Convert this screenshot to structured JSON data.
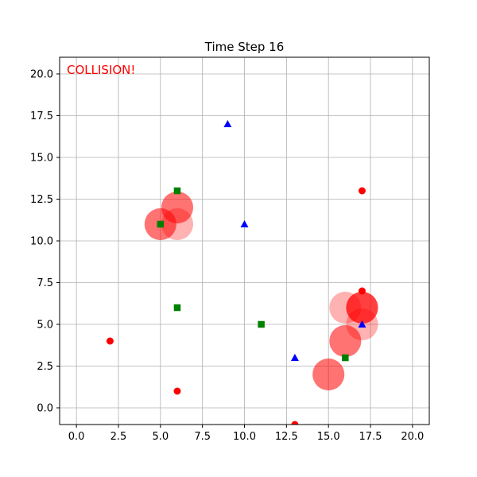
{
  "chart_data": {
    "type": "scatter",
    "title": "Time Step 16",
    "xlabel": "",
    "ylabel": "",
    "xlim": [
      -1,
      21
    ],
    "ylim": [
      -1,
      21
    ],
    "x_ticks": [
      0.0,
      2.5,
      5.0,
      7.5,
      10.0,
      12.5,
      15.0,
      17.5,
      20.0
    ],
    "y_ticks": [
      0.0,
      2.5,
      5.0,
      7.5,
      10.0,
      12.5,
      15.0,
      17.5,
      20.0
    ],
    "x_tick_labels": [
      "0.0",
      "2.5",
      "5.0",
      "7.5",
      "10.0",
      "12.5",
      "15.0",
      "17.5",
      "20.0"
    ],
    "y_tick_labels": [
      "0.0",
      "2.5",
      "5.0",
      "7.5",
      "10.0",
      "12.5",
      "15.0",
      "17.5",
      "20.0"
    ],
    "grid": true,
    "annotation": {
      "text": "COLLISION!",
      "color": "#ff0000"
    },
    "colors": {
      "circle": "#ff0000",
      "square": "#008000",
      "triangle": "#0000ff",
      "grid": "#b0b0b0",
      "axes": "#000000"
    },
    "markers": {
      "circles": [
        {
          "x": 2,
          "y": 4
        },
        {
          "x": 6,
          "y": 1
        },
        {
          "x": 17,
          "y": 13
        },
        {
          "x": 17,
          "y": 7
        },
        {
          "x": 13,
          "y": -1
        }
      ],
      "squares": [
        {
          "x": 6,
          "y": 13
        },
        {
          "x": 5,
          "y": 11
        },
        {
          "x": 6,
          "y": 6
        },
        {
          "x": 11,
          "y": 5
        },
        {
          "x": 16,
          "y": 3
        }
      ],
      "triangles": [
        {
          "x": 9,
          "y": 17
        },
        {
          "x": 10,
          "y": 11
        },
        {
          "x": 13,
          "y": 3
        },
        {
          "x": 17,
          "y": 5
        }
      ]
    },
    "collision_zones": [
      {
        "x": 6,
        "y": 11,
        "opacity": 0.3
      },
      {
        "x": 6,
        "y": 12,
        "opacity": 0.55
      },
      {
        "x": 5,
        "y": 11,
        "opacity": 0.55
      },
      {
        "x": 16,
        "y": 6,
        "opacity": 0.3
      },
      {
        "x": 17,
        "y": 5,
        "opacity": 0.3
      },
      {
        "x": 17,
        "y": 6,
        "opacity": 0.75
      },
      {
        "x": 16,
        "y": 4,
        "opacity": 0.55
      },
      {
        "x": 15,
        "y": 2,
        "opacity": 0.55
      }
    ]
  }
}
